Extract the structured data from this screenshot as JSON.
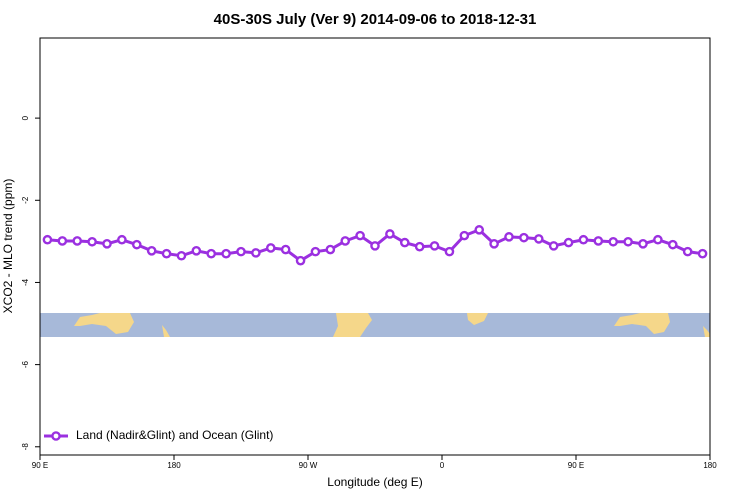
{
  "chart_data": {
    "type": "line",
    "title": "40S-30S July (Ver 9)   2014-09-06 to 2018-12-31",
    "x_label": "Longitude (deg E)",
    "y_label": "XCO2 - MLO trend (ppm)",
    "x": [
      95,
      105,
      115,
      125,
      135,
      145,
      155,
      165,
      175,
      185,
      195,
      205,
      215,
      225,
      235,
      245,
      255,
      265,
      275,
      285,
      295,
      305,
      315,
      325,
      335,
      345,
      355,
      365,
      375,
      385,
      395,
      405,
      415,
      425,
      435,
      445,
      455,
      465,
      475,
      485,
      495,
      505,
      515,
      525,
      535
    ],
    "series": [
      {
        "name": "Land (Nadir&Glint) and Ocean (Glint)",
        "color": "#9b30e0",
        "values": [
          -2.96,
          -2.99,
          -2.99,
          -3.01,
          -3.06,
          -2.96,
          -3.08,
          -3.23,
          -3.3,
          -3.35,
          -3.23,
          -3.3,
          -3.3,
          -3.25,
          -3.28,
          -3.16,
          -3.2,
          -3.47,
          -3.25,
          -3.2,
          -2.99,
          -2.86,
          -3.11,
          -2.82,
          -3.03,
          -3.13,
          -3.11,
          -3.25,
          -2.86,
          -2.72,
          -3.06,
          -2.89,
          -2.91,
          -2.94,
          -3.11,
          -3.03,
          -2.96,
          -2.99,
          -3.01,
          -3.01,
          -3.06,
          -2.96,
          -3.08,
          -3.25,
          -3.3
        ]
      }
    ],
    "xlim": [
      90,
      540
    ],
    "xticks": [
      {
        "value": 90,
        "label": "90 E"
      },
      180,
      {
        "value": 270,
        "label": "90 W"
      },
      {
        "value": 360,
        "label": "0"
      },
      {
        "value": 450,
        "label": "90 E"
      },
      {
        "value": 540,
        "label": "180"
      }
    ],
    "ylim": [
      -8.2,
      1.95
    ],
    "yticks": [
      0,
      -2,
      -4,
      -6,
      -8
    ],
    "legend": "bottom-left"
  }
}
